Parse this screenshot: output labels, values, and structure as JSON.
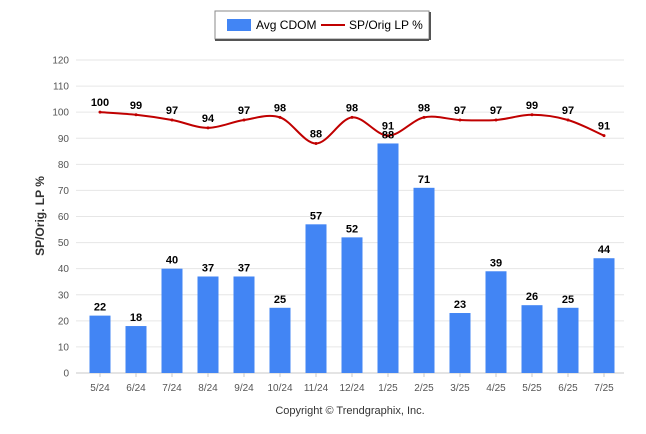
{
  "chart_data": {
    "type": "bar",
    "categories": [
      "5/24",
      "6/24",
      "7/24",
      "8/24",
      "9/24",
      "10/24",
      "11/24",
      "12/24",
      "1/25",
      "2/25",
      "3/25",
      "4/25",
      "5/25",
      "6/25",
      "7/25"
    ],
    "series": [
      {
        "name": "Avg CDOM",
        "type": "bar",
        "color": "#4285f4",
        "values": [
          22,
          18,
          40,
          37,
          37,
          25,
          57,
          52,
          88,
          71,
          23,
          39,
          26,
          25,
          44
        ],
        "labels": [
          "22",
          "18",
          "40",
          "37",
          "37",
          "25",
          "57",
          "52",
          "88",
          "71",
          "23",
          "39",
          "26",
          "25",
          "44"
        ]
      },
      {
        "name": "SP/Orig LP %",
        "type": "line",
        "color": "#c00000",
        "smooth": true,
        "values": [
          100,
          99,
          97,
          94,
          97,
          98,
          88,
          98,
          91,
          98,
          97,
          97,
          99,
          97,
          91
        ],
        "labels": [
          "100",
          "99",
          "97",
          "94",
          "97",
          "98",
          "88",
          "98",
          "91",
          "98",
          "97",
          "97",
          "99",
          "97",
          "91"
        ]
      }
    ],
    "ylabel": "SP/Orig. LP %",
    "ylim": [
      0,
      120
    ],
    "yticks": [
      "0",
      "10",
      "20",
      "30",
      "40",
      "50",
      "60",
      "70",
      "80",
      "90",
      "100",
      "110",
      "120"
    ],
    "grid": true,
    "legend": "top-center",
    "credit": "Copyright © Trendgraphix, Inc."
  }
}
